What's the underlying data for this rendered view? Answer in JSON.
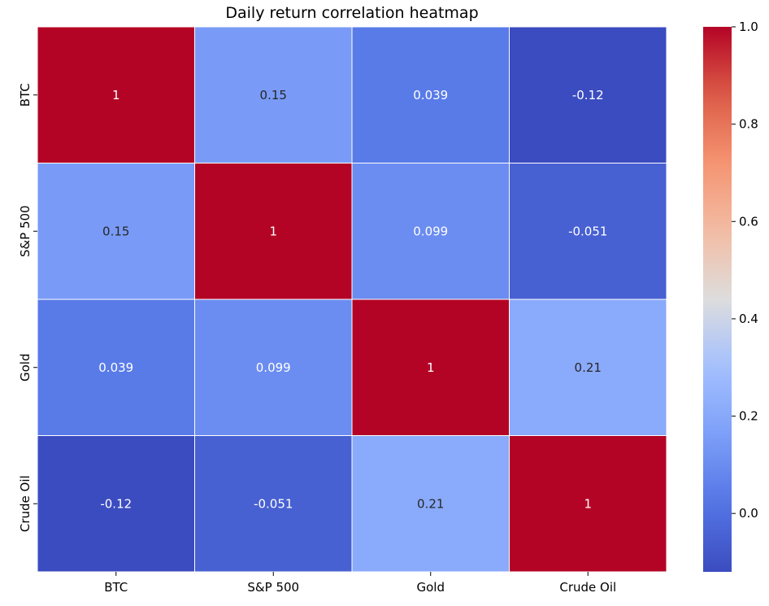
{
  "chart_data": {
    "type": "heatmap",
    "title": "Daily return correlation heatmap",
    "x_categories": [
      "BTC",
      "S&P 500",
      "Gold",
      "Crude Oil"
    ],
    "y_categories": [
      "BTC",
      "S&P 500",
      "Gold",
      "Crude Oil"
    ],
    "values": [
      [
        1,
        0.15,
        0.039,
        -0.12
      ],
      [
        0.15,
        1,
        0.099,
        -0.051
      ],
      [
        0.039,
        0.099,
        1,
        0.21
      ],
      [
        -0.12,
        -0.051,
        0.21,
        1
      ]
    ],
    "cell_labels": [
      [
        "1",
        "0.15",
        "0.039",
        "-0.12"
      ],
      [
        "0.15",
        "1",
        "0.099",
        "-0.051"
      ],
      [
        "0.039",
        "0.099",
        "1",
        "0.21"
      ],
      [
        "-0.12",
        "-0.051",
        "0.21",
        "1"
      ]
    ],
    "colormap": "coolwarm",
    "vmin": -0.12,
    "vmax": 1.0,
    "colorbar_ticks": [
      0.0,
      0.2,
      0.4,
      0.6,
      0.8,
      1.0
    ],
    "colorbar_tick_labels": [
      "0.0",
      "0.2",
      "0.4",
      "0.6",
      "0.8",
      "1.0"
    ],
    "grid_lines_color": "#ffffff"
  }
}
